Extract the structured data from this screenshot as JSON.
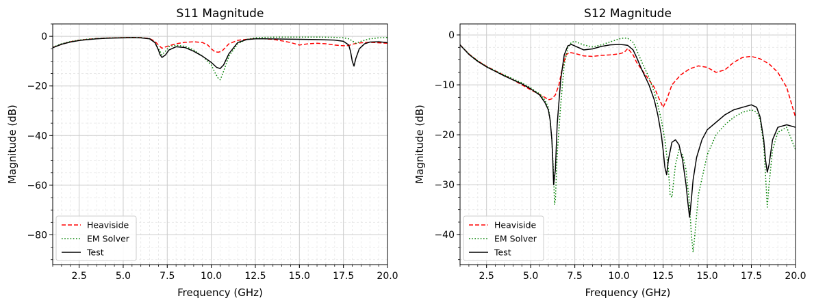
{
  "chart_data": [
    {
      "type": "line",
      "title": "S11 Magnitude",
      "xlabel": "Frequency (GHz)",
      "ylabel": "Magnitude (dB)",
      "xlim": [
        1,
        20
      ],
      "ylim": [
        -92,
        5
      ],
      "xticks": [
        2.5,
        5.0,
        7.5,
        10.0,
        12.5,
        15.0,
        17.5,
        20.0
      ],
      "xtick_labels": [
        "2.5",
        "5.0",
        "7.5",
        "10.0",
        "12.5",
        "15.0",
        "17.5",
        "20.0"
      ],
      "yticks": [
        0,
        -20,
        -40,
        -60,
        -80
      ],
      "ytick_labels": [
        "0",
        "−20",
        "−40",
        "−60",
        "−80"
      ],
      "grid": true,
      "legend_position": "bottom-left",
      "series": [
        {
          "name": "Heaviside",
          "color": "#ff0000",
          "style": "dashed",
          "x": [
            1,
            1.5,
            2,
            2.5,
            3,
            3.5,
            4,
            4.5,
            5,
            5.5,
            6,
            6.5,
            6.8,
            7,
            7.2,
            7.5,
            8,
            8.5,
            9,
            9.5,
            9.8,
            10,
            10.2,
            10.4,
            10.6,
            10.8,
            11,
            11.5,
            12,
            12.5,
            13,
            13.5,
            14,
            14.5,
            15,
            15.5,
            16,
            16.5,
            17,
            17.5,
            17.8,
            18,
            18.2,
            18.5,
            19,
            19.5,
            20
          ],
          "y": [
            -4.5,
            -3.2,
            -2.2,
            -1.6,
            -1.2,
            -0.9,
            -0.7,
            -0.6,
            -0.5,
            -0.45,
            -0.5,
            -0.9,
            -2.0,
            -3.5,
            -4.8,
            -4.0,
            -3.0,
            -2.4,
            -2.2,
            -2.5,
            -3.5,
            -5.0,
            -6.2,
            -6.4,
            -6.0,
            -4.5,
            -3.0,
            -1.6,
            -1.2,
            -1.0,
            -1.0,
            -1.2,
            -1.8,
            -2.5,
            -3.5,
            -3.0,
            -2.8,
            -3.0,
            -3.5,
            -3.8,
            -3.7,
            -3.2,
            -2.9,
            -2.6,
            -2.4,
            -2.6,
            -2.8
          ]
        },
        {
          "name": "EM Solver",
          "color": "#008000",
          "style": "dotted",
          "x": [
            1,
            1.5,
            2,
            2.5,
            3,
            3.5,
            4,
            4.5,
            5,
            5.5,
            6,
            6.5,
            6.8,
            7,
            7.2,
            7.4,
            7.6,
            8,
            8.5,
            9,
            9.5,
            10,
            10.2,
            10.4,
            10.5,
            10.6,
            10.8,
            11,
            11.5,
            12,
            12.5,
            13,
            14,
            15,
            16,
            17,
            17.5,
            17.8,
            18,
            18.2,
            18.5,
            19,
            19.5,
            20
          ],
          "y": [
            -4.4,
            -3.0,
            -2.1,
            -1.5,
            -1.1,
            -0.9,
            -0.7,
            -0.6,
            -0.5,
            -0.45,
            -0.5,
            -1.0,
            -2.5,
            -5.0,
            -7.5,
            -6.0,
            -4.2,
            -3.6,
            -4.0,
            -5.5,
            -8.0,
            -11.5,
            -14.5,
            -17.0,
            -17.5,
            -16.0,
            -12.0,
            -8.0,
            -3.0,
            -1.2,
            -0.6,
            -0.4,
            -0.3,
            -0.3,
            -0.3,
            -0.4,
            -0.6,
            -1.0,
            -1.8,
            -2.8,
            -2.0,
            -1.0,
            -0.6,
            -0.5
          ]
        },
        {
          "name": "Test",
          "color": "#000000",
          "style": "solid",
          "x": [
            1,
            1.5,
            2,
            2.5,
            3,
            3.5,
            4,
            4.5,
            5,
            5.5,
            6,
            6.5,
            6.8,
            7,
            7.1,
            7.2,
            7.4,
            7.6,
            8,
            8.5,
            9,
            9.5,
            10,
            10.3,
            10.5,
            10.7,
            11,
            11.5,
            12,
            12.5,
            13,
            14,
            15,
            16,
            17,
            17.5,
            17.8,
            17.9,
            18,
            18.1,
            18.2,
            18.4,
            18.7,
            19,
            19.5,
            20
          ],
          "y": [
            -4.6,
            -3.2,
            -2.3,
            -1.7,
            -1.3,
            -1.0,
            -0.8,
            -0.7,
            -0.6,
            -0.55,
            -0.6,
            -1.0,
            -2.5,
            -5.5,
            -7.5,
            -8.5,
            -7.5,
            -5.5,
            -4.2,
            -4.5,
            -6.0,
            -8.0,
            -10.5,
            -12.5,
            -13.0,
            -11.5,
            -7.0,
            -2.5,
            -1.3,
            -1.0,
            -1.0,
            -1.1,
            -1.2,
            -1.3,
            -1.5,
            -2.0,
            -3.5,
            -6.0,
            -10.0,
            -12.0,
            -9.0,
            -5.0,
            -3.0,
            -2.3,
            -2.2,
            -2.5
          ]
        }
      ]
    },
    {
      "type": "line",
      "title": "S12 Magnitude",
      "xlabel": "Frequency (GHz)",
      "ylabel": "Magnitude (dB)",
      "xlim": [
        1,
        20
      ],
      "ylim": [
        -46,
        2.2
      ],
      "xticks": [
        2.5,
        5.0,
        7.5,
        10.0,
        12.5,
        15.0,
        17.5,
        20.0
      ],
      "xtick_labels": [
        "2.5",
        "5.0",
        "7.5",
        "10.0",
        "12.5",
        "15.0",
        "17.5",
        "20.0"
      ],
      "yticks": [
        0,
        -10,
        -20,
        -30,
        -40
      ],
      "ytick_labels": [
        "0",
        "−10",
        "−20",
        "−30",
        "−40"
      ],
      "grid": true,
      "legend_position": "bottom-left",
      "series": [
        {
          "name": "Heaviside",
          "color": "#ff0000",
          "style": "dashed",
          "x": [
            1,
            1.5,
            2,
            2.5,
            3,
            3.5,
            4,
            4.5,
            5,
            5.5,
            5.8,
            6,
            6.2,
            6.4,
            6.6,
            6.8,
            7,
            7.2,
            7.5,
            8,
            8.5,
            9,
            9.5,
            10,
            10.3,
            10.5,
            10.8,
            11,
            11.5,
            12,
            12.3,
            12.5,
            12.7,
            13,
            13.5,
            14,
            14.5,
            15,
            15.5,
            16,
            16.5,
            17,
            17.5,
            18,
            18.5,
            19,
            19.5,
            20
          ],
          "y": [
            -2.0,
            -3.8,
            -5.2,
            -6.3,
            -7.2,
            -8.1,
            -9.0,
            -10.0,
            -11.0,
            -11.9,
            -12.5,
            -13.0,
            -12.8,
            -12.0,
            -10.0,
            -6.5,
            -4.0,
            -3.5,
            -3.7,
            -4.2,
            -4.3,
            -4.1,
            -4.0,
            -3.8,
            -3.5,
            -2.7,
            -4.0,
            -5.5,
            -8.0,
            -10.5,
            -13.0,
            -14.5,
            -13.0,
            -10.0,
            -8.0,
            -6.8,
            -6.2,
            -6.5,
            -7.5,
            -7.0,
            -5.5,
            -4.5,
            -4.3,
            -4.8,
            -5.8,
            -7.5,
            -10.5,
            -16.5
          ]
        },
        {
          "name": "EM Solver",
          "color": "#008000",
          "style": "dotted",
          "x": [
            1,
            1.5,
            2,
            2.5,
            3,
            3.5,
            4,
            4.5,
            5,
            5.5,
            5.8,
            6,
            6.1,
            6.2,
            6.3,
            6.35,
            6.4,
            6.5,
            6.7,
            6.9,
            7.1,
            7.3,
            7.5,
            8,
            8.5,
            9,
            9.5,
            10,
            10.3,
            10.5,
            10.8,
            11,
            11.3,
            11.7,
            12,
            12.2,
            12.4,
            12.6,
            12.8,
            12.9,
            13,
            13.2,
            13.4,
            13.6,
            13.8,
            14,
            14.1,
            14.2,
            14.3,
            14.5,
            15,
            15.5,
            16,
            16.5,
            17,
            17.5,
            17.8,
            18,
            18.2,
            18.3,
            18.4,
            18.5,
            18.7,
            19,
            19.5,
            20
          ],
          "y": [
            -2.0,
            -3.8,
            -5.2,
            -6.3,
            -7.2,
            -8.0,
            -8.8,
            -9.6,
            -10.6,
            -11.8,
            -13.0,
            -14.5,
            -17.0,
            -21.0,
            -28.0,
            -34.0,
            -33.0,
            -24.0,
            -14.0,
            -6.0,
            -2.6,
            -1.5,
            -1.3,
            -2.0,
            -2.4,
            -2.0,
            -1.4,
            -0.8,
            -0.6,
            -0.7,
            -1.5,
            -3.0,
            -5.5,
            -8.5,
            -11.5,
            -14.0,
            -17.0,
            -21.0,
            -27.0,
            -32.0,
            -32.5,
            -26.0,
            -23.0,
            -24.0,
            -27.0,
            -34.0,
            -40.0,
            -43.5,
            -40.0,
            -32.0,
            -24.0,
            -20.0,
            -18.0,
            -16.5,
            -15.5,
            -15.0,
            -15.5,
            -17.0,
            -22.0,
            -28.0,
            -34.5,
            -30.0,
            -23.0,
            -19.5,
            -18.5,
            -23.0
          ]
        },
        {
          "name": "Test",
          "color": "#000000",
          "style": "solid",
          "x": [
            1,
            1.5,
            2,
            2.5,
            3,
            3.5,
            4,
            4.5,
            5,
            5.5,
            5.8,
            6,
            6.1,
            6.2,
            6.25,
            6.3,
            6.4,
            6.5,
            6.7,
            6.9,
            7.1,
            7.3,
            7.5,
            8,
            8.5,
            9,
            9.5,
            10,
            10.3,
            10.5,
            10.8,
            11,
            11.3,
            11.7,
            12,
            12.2,
            12.4,
            12.5,
            12.6,
            12.7,
            12.8,
            13,
            13.2,
            13.4,
            13.6,
            13.8,
            13.9,
            14,
            14.1,
            14.2,
            14.4,
            14.7,
            15,
            15.5,
            16,
            16.5,
            17,
            17.5,
            17.8,
            18,
            18.2,
            18.3,
            18.4,
            18.5,
            18.7,
            19,
            19.5,
            20
          ],
          "y": [
            -2.0,
            -3.9,
            -5.3,
            -6.4,
            -7.3,
            -8.2,
            -9.0,
            -9.8,
            -10.8,
            -12.0,
            -13.5,
            -15.0,
            -17.0,
            -21.0,
            -25.0,
            -30.0,
            -27.0,
            -18.0,
            -9.0,
            -4.0,
            -2.2,
            -1.9,
            -2.2,
            -3.0,
            -2.8,
            -2.3,
            -2.0,
            -1.9,
            -2.0,
            -2.1,
            -3.0,
            -4.5,
            -7.0,
            -10.0,
            -13.0,
            -16.0,
            -20.0,
            -23.0,
            -26.5,
            -28.0,
            -25.0,
            -21.5,
            -21.0,
            -22.0,
            -25.0,
            -30.0,
            -33.5,
            -36.5,
            -33.0,
            -29.0,
            -24.5,
            -21.0,
            -19.0,
            -17.5,
            -16.0,
            -15.0,
            -14.5,
            -14.0,
            -14.5,
            -16.5,
            -21.0,
            -25.0,
            -27.5,
            -26.0,
            -21.0,
            -18.5,
            -18.0,
            -18.5
          ]
        }
      ]
    }
  ]
}
